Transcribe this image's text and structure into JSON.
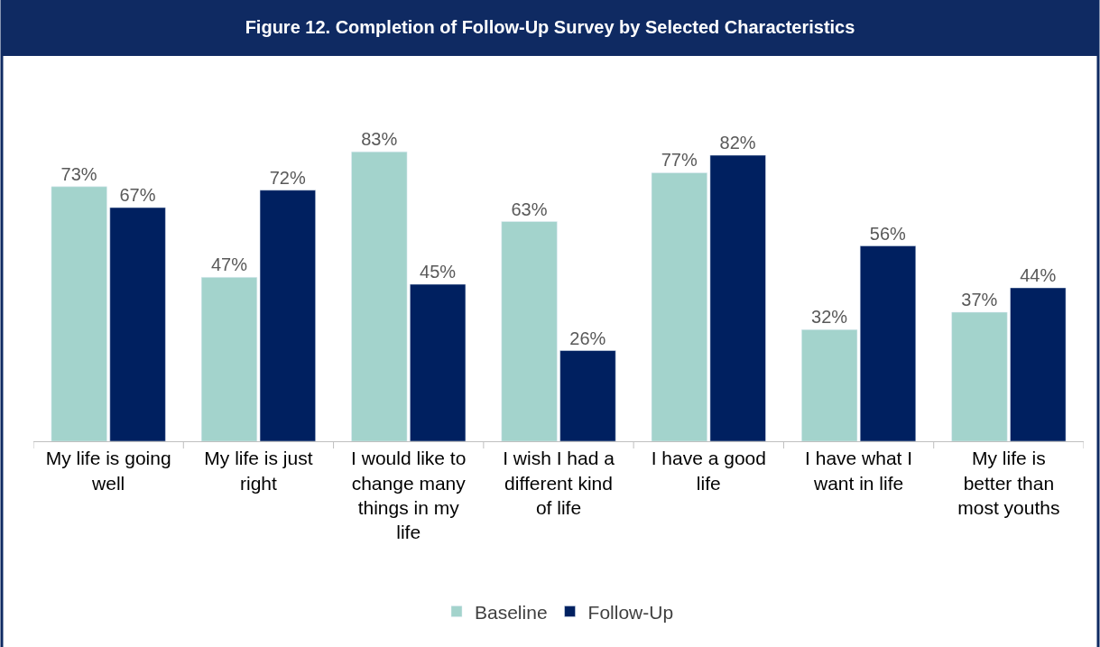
{
  "chart_data": {
    "type": "bar",
    "title": "Figure 12. Completion of Follow-Up Survey by Selected Characteristics",
    "categories": [
      "My life is going well",
      "My life is just right",
      "I would like to change many things in my life",
      "I wish I had a different kind of life",
      "I have a good life",
      "I have what I want in life",
      "My life is better than most youths"
    ],
    "series": [
      {
        "name": "Baseline",
        "color": "#a3d3cc",
        "values": [
          73,
          47,
          83,
          63,
          77,
          32,
          37
        ],
        "value_labels": [
          "73%",
          "47%",
          "83%",
          "63%",
          "77%",
          "32%",
          "37%"
        ]
      },
      {
        "name": "Follow-Up",
        "color": "#002060",
        "values": [
          67,
          72,
          45,
          26,
          82,
          56,
          44
        ],
        "value_labels": [
          "67%",
          "72%",
          "45%",
          "26%",
          "82%",
          "56%",
          "44%"
        ]
      }
    ],
    "legend": "bottom"
  }
}
